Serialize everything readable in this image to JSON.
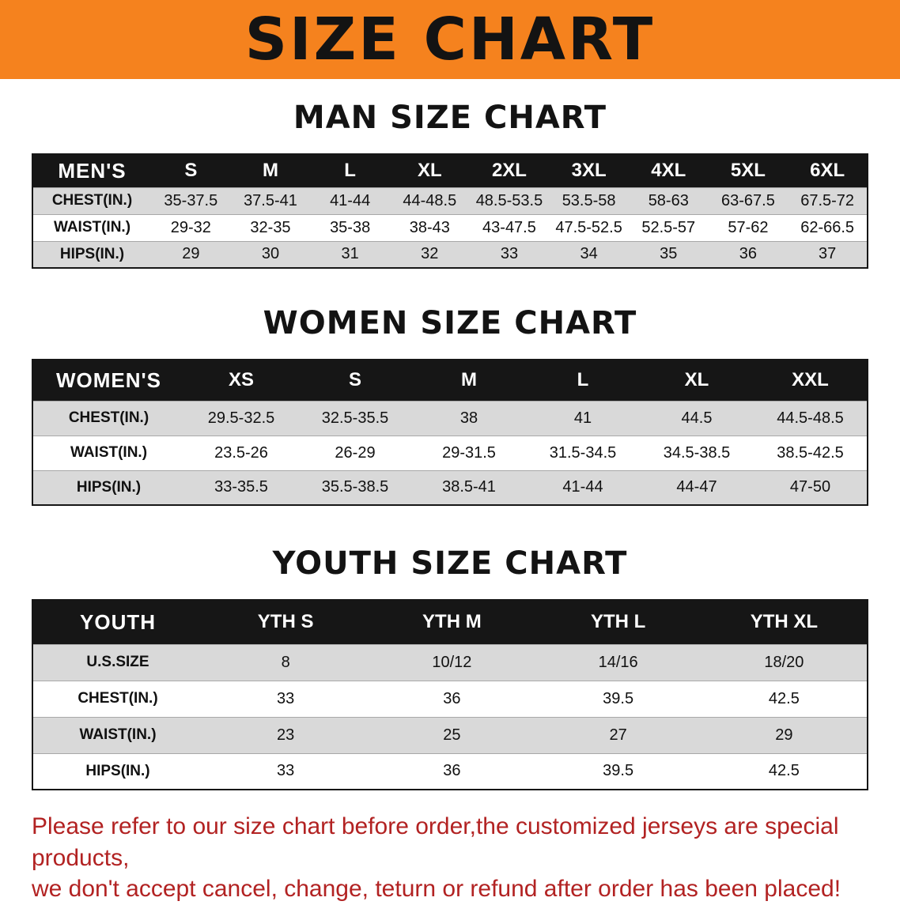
{
  "banner": {
    "title": "SIZE CHART"
  },
  "colors": {
    "banner_bg": "#F5821E",
    "heading_color": "#131313",
    "header_bg": "#161616",
    "row_stripe": "#D9D9D9",
    "disclaimer_color": "#B22222"
  },
  "sections": [
    {
      "heading": "MAN SIZE CHART",
      "table": {
        "header": [
          "MEN'S",
          "S",
          "M",
          "L",
          "XL",
          "2XL",
          "3XL",
          "4XL",
          "5XL",
          "6XL"
        ],
        "rows": [
          [
            "CHEST(IN.)",
            "35-37.5",
            "37.5-41",
            "41-44",
            "44-48.5",
            "48.5-53.5",
            "53.5-58",
            "58-63",
            "63-67.5",
            "67.5-72"
          ],
          [
            "WAIST(IN.)",
            "29-32",
            "32-35",
            "35-38",
            "38-43",
            "43-47.5",
            "47.5-52.5",
            "52.5-57",
            "57-62",
            "62-66.5"
          ],
          [
            "HIPS(IN.)",
            "29",
            "30",
            "31",
            "32",
            "33",
            "34",
            "35",
            "36",
            "37"
          ]
        ]
      }
    },
    {
      "heading": "WOMEN SIZE CHART",
      "table": {
        "header": [
          "WOMEN'S",
          "XS",
          "S",
          "M",
          "L",
          "XL",
          "XXL"
        ],
        "rows": [
          [
            "CHEST(IN.)",
            "29.5-32.5",
            "32.5-35.5",
            "38",
            "41",
            "44.5",
            "44.5-48.5"
          ],
          [
            "WAIST(IN.)",
            "23.5-26",
            "26-29",
            "29-31.5",
            "31.5-34.5",
            "34.5-38.5",
            "38.5-42.5"
          ],
          [
            "HIPS(IN.)",
            "33-35.5",
            "35.5-38.5",
            "38.5-41",
            "41-44",
            "44-47",
            "47-50"
          ]
        ]
      }
    },
    {
      "heading": "YOUTH SIZE CHART",
      "table": {
        "header": [
          "YOUTH",
          "YTH S",
          "YTH M",
          "YTH L",
          "YTH XL"
        ],
        "rows": [
          [
            "U.S.SIZE",
            "8",
            "10/12",
            "14/16",
            "18/20"
          ],
          [
            "CHEST(IN.)",
            "33",
            "36",
            "39.5",
            "42.5"
          ],
          [
            "WAIST(IN.)",
            "23",
            "25",
            "27",
            "29"
          ],
          [
            "HIPS(IN.)",
            "33",
            "36",
            "39.5",
            "42.5"
          ]
        ]
      }
    }
  ],
  "disclaimer": {
    "line1": "Please refer to our size chart before order,the customized jerseys are special products,",
    "line2": "we don't accept cancel, change, teturn or refund after order has been placed!"
  }
}
